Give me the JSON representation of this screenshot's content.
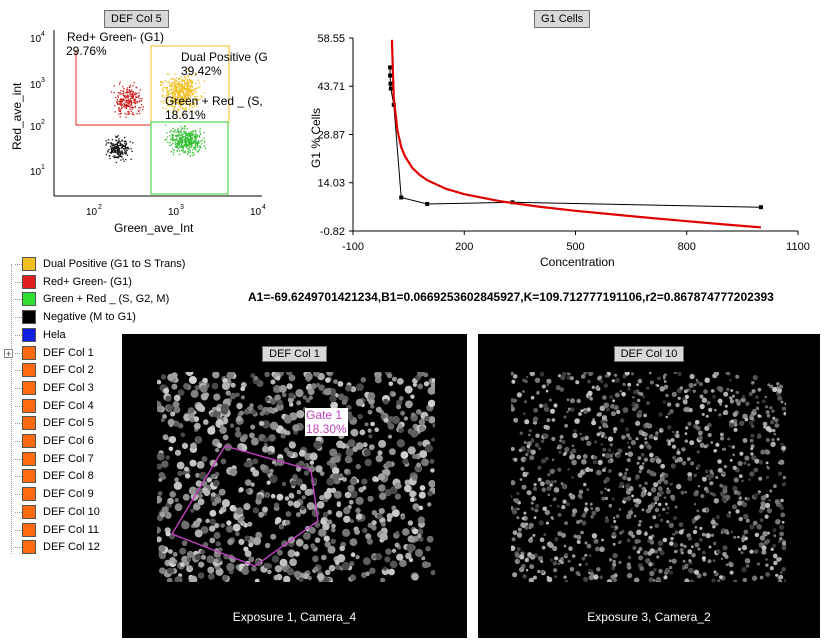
{
  "scatter_plot": {
    "title": "DEF Col 5",
    "xlabel": "Green_ave_Int",
    "ylabel": "Red_ave_int",
    "x_ticks": [
      "10",
      "10",
      "10"
    ],
    "x_tick_exps": [
      "2",
      "3",
      "4"
    ],
    "y_ticks": [
      "10",
      "10",
      "10",
      "10"
    ],
    "y_tick_exps": [
      "4",
      "3",
      "2",
      "1"
    ],
    "gates": [
      {
        "name": "Red+ Green- (G1)",
        "pct": "29.76%",
        "color": "#e02020"
      },
      {
        "name": "Dual Positive (G",
        "pct": "39.42%",
        "color": "#f0c020"
      },
      {
        "name": "Green + Red _ (S,",
        "pct": "18.61%",
        "color": "#30c030"
      }
    ]
  },
  "chart_data": {
    "type": "line",
    "title": "G1 Cells",
    "xlabel": "Concentration",
    "ylabel": "G1 % Cells",
    "xlim": [
      -100,
      1100
    ],
    "ylim": [
      -0.82,
      58.55
    ],
    "x_ticks": [
      "-100",
      "200",
      "500",
      "800",
      "1100"
    ],
    "y_ticks": [
      "58.55",
      "43.71",
      "28.87",
      "14.03",
      "-0.82"
    ],
    "series": [
      {
        "values_x": [
          0,
          0,
          1,
          2,
          10,
          30,
          100,
          330,
          1000
        ],
        "values_y": [
          49.5,
          47,
          44.5,
          43,
          38,
          9.5,
          7.5,
          8,
          6.5
        ]
      },
      {
        "values_x": [
          5,
          10,
          20,
          30,
          40,
          60,
          80,
          100,
          150,
          200,
          300,
          400,
          500,
          600,
          700,
          800,
          900,
          1000
        ],
        "values_y": [
          58,
          40,
          30,
          25,
          22.2,
          18.6,
          16.4,
          14.8,
          12.2,
          10.5,
          8.3,
          6.7,
          5.4,
          4.3,
          3.2,
          2.2,
          1.2,
          0.3
        ]
      }
    ]
  },
  "equation": "A1=-69.6249701421234,B1=0.0669253602845927,K=109.712777191106,r2=0.867874777202393",
  "legend": [
    {
      "label": "Dual Positive (G1 to S Trans)",
      "color": "#f0c020"
    },
    {
      "label": "Red+ Green- (G1)",
      "color": "#e02020"
    },
    {
      "label": "Green + Red _ (S, G2, M)",
      "color": "#30e030"
    },
    {
      "label": "Negative (M to G1)",
      "color": "#000000"
    },
    {
      "label": "Hela",
      "color": "#1020e0"
    },
    {
      "label": "DEF Col 1",
      "color": "#ff6a10"
    },
    {
      "label": "DEF Col 2",
      "color": "#ff6a10"
    },
    {
      "label": "DEF Col 3",
      "color": "#ff6a10"
    },
    {
      "label": "DEF Col 4",
      "color": "#ff6a10"
    },
    {
      "label": "DEF Col 5",
      "color": "#ff6a10"
    },
    {
      "label": "DEF Col 6",
      "color": "#ff6a10"
    },
    {
      "label": "DEF Col 7",
      "color": "#ff6a10"
    },
    {
      "label": "DEF Col 8",
      "color": "#ff6a10"
    },
    {
      "label": "DEF Col 9",
      "color": "#ff6a10"
    },
    {
      "label": "DEF Col 10",
      "color": "#ff6a10"
    },
    {
      "label": "DEF Col 11",
      "color": "#ff6a10"
    },
    {
      "label": "DEF Col 12",
      "color": "#ff6a10"
    }
  ],
  "image_left": {
    "title": "DEF Col 1",
    "caption": "Exposure 1, Camera_4",
    "gate_label": "Gate 1",
    "gate_pct": "18.30%"
  },
  "image_right": {
    "title": "DEF Col 10",
    "caption": "Exposure 3, Camera_2"
  },
  "tree_expander": "+"
}
